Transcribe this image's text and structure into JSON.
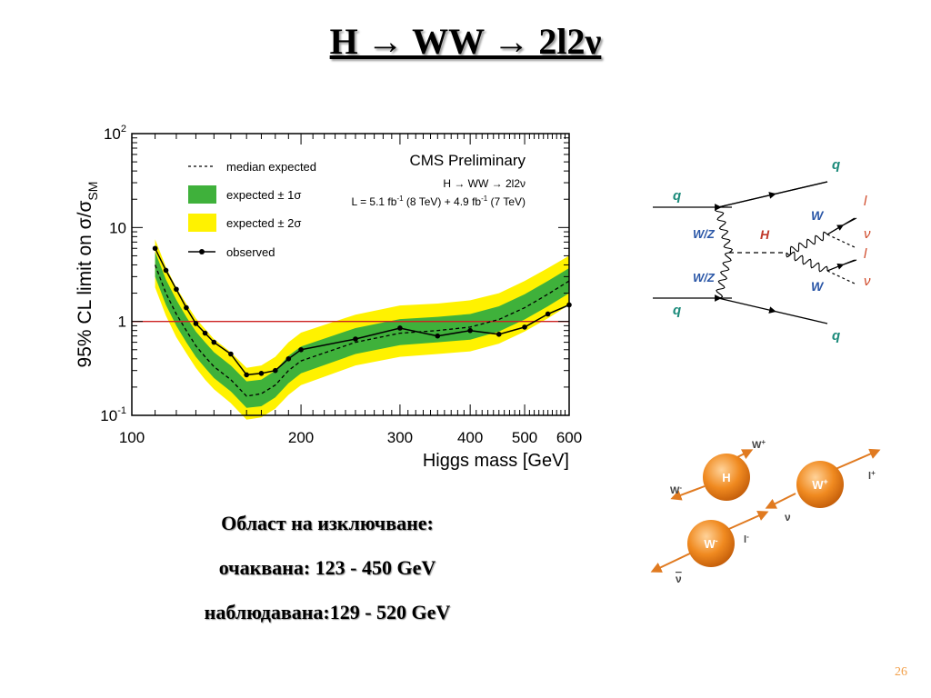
{
  "title": "H → WW → 2l2ν",
  "summary": {
    "heading": "Област на изключване:",
    "expected": "очаквана: 123 - 450 GeV",
    "observed": "наблюдавана:129 - 520 GeV"
  },
  "slide_number": "26",
  "chart_data": {
    "type": "line",
    "xlabel": "Higgs mass [GeV]",
    "ylabel": "95% CL limit on σ/σ",
    "ylabel_sub": "SM",
    "x_scale": "log",
    "y_scale": "log",
    "xlim": [
      100,
      600
    ],
    "ylim": [
      0.1,
      100
    ],
    "x_ticks": [
      100,
      200,
      300,
      400,
      500,
      600
    ],
    "y_ticks": [
      {
        "value": 100,
        "base": "10",
        "exp": "2"
      },
      {
        "value": 10,
        "base": "10",
        "exp": ""
      },
      {
        "value": 1,
        "base": "1",
        "exp": ""
      },
      {
        "value": 0.1,
        "base": "10",
        "exp": "-1"
      }
    ],
    "reference_line": 1,
    "legend_position": "top-left",
    "legend": [
      "median expected",
      "expected ± 1σ",
      "expected ± 2σ",
      "observed"
    ],
    "annotation": {
      "title": "CMS Preliminary",
      "process": "H → WW → 2l2ν",
      "lumi_prefix": "L = 5.1 fb",
      "lumi_mid": " (8 TeV) + 4.9 fb",
      "lumi_suffix": " (7 TeV)",
      "lumi_exp": "-1"
    },
    "colors": {
      "band_1sigma": "#3fb13b",
      "band_2sigma": "#fff200",
      "reference": "#cc2222",
      "observed": "#000000"
    },
    "series": [
      {
        "name": "observed",
        "x": [
          110,
          115,
          120,
          125,
          130,
          135,
          140,
          150,
          160,
          170,
          180,
          190,
          200,
          250,
          300,
          350,
          400,
          450,
          500,
          550,
          600
        ],
        "values": [
          6.0,
          3.5,
          2.2,
          1.4,
          0.95,
          0.75,
          0.6,
          0.45,
          0.27,
          0.28,
          0.3,
          0.4,
          0.5,
          0.65,
          0.85,
          0.7,
          0.8,
          0.73,
          0.87,
          1.2,
          1.5
        ]
      },
      {
        "name": "median expected",
        "x": [
          110,
          115,
          120,
          125,
          130,
          135,
          140,
          150,
          160,
          170,
          180,
          190,
          200,
          250,
          300,
          350,
          400,
          450,
          500,
          550,
          600
        ],
        "values": [
          4.0,
          2.0,
          1.2,
          0.8,
          0.55,
          0.42,
          0.33,
          0.24,
          0.16,
          0.17,
          0.21,
          0.3,
          0.38,
          0.6,
          0.75,
          0.8,
          0.87,
          1.05,
          1.4,
          1.95,
          2.7
        ]
      }
    ],
    "band_1sigma": {
      "x": [
        110,
        115,
        120,
        125,
        130,
        135,
        140,
        150,
        160,
        170,
        180,
        190,
        200,
        250,
        300,
        350,
        400,
        450,
        500,
        550,
        600
      ],
      "low": [
        3.0,
        1.5,
        0.9,
        0.6,
        0.42,
        0.32,
        0.25,
        0.18,
        0.12,
        0.125,
        0.155,
        0.22,
        0.28,
        0.45,
        0.56,
        0.6,
        0.64,
        0.78,
        1.05,
        1.45,
        2.0
      ],
      "high": [
        5.5,
        2.8,
        1.7,
        1.12,
        0.78,
        0.6,
        0.47,
        0.34,
        0.23,
        0.24,
        0.3,
        0.43,
        0.54,
        0.85,
        1.06,
        1.12,
        1.2,
        1.45,
        1.95,
        2.7,
        3.7
      ]
    },
    "band_2sigma": {
      "x": [
        110,
        115,
        120,
        125,
        130,
        135,
        140,
        150,
        160,
        170,
        180,
        190,
        200,
        250,
        300,
        350,
        400,
        450,
        500,
        550,
        600
      ],
      "low": [
        2.3,
        1.15,
        0.68,
        0.46,
        0.32,
        0.24,
        0.19,
        0.135,
        0.09,
        0.095,
        0.118,
        0.165,
        0.21,
        0.34,
        0.42,
        0.45,
        0.48,
        0.58,
        0.78,
        1.08,
        1.5
      ],
      "high": [
        7.5,
        3.8,
        2.3,
        1.55,
        1.08,
        0.83,
        0.65,
        0.47,
        0.32,
        0.34,
        0.42,
        0.6,
        0.76,
        1.18,
        1.48,
        1.55,
        1.68,
        2.0,
        2.7,
        3.7,
        5.0
      ]
    }
  },
  "feynman": {
    "q_in_top": "q",
    "q_out_top": "q",
    "q_in_bottom": "q",
    "q_out_bottom": "q",
    "wz_top": "W/Z",
    "wz_bottom": "W/Z",
    "higgs": "H",
    "w_top": "W",
    "w_bottom": "W",
    "lepton_top": "l",
    "nu_top": "ν",
    "lepton_bottom": "l",
    "nu_bottom": "ν",
    "colors": {
      "quark": "#1b8a7a",
      "boson": "#2b57a7",
      "lepton": "#d04a2a"
    }
  },
  "decay": {
    "higgs": "H",
    "w_minus": "W",
    "w_plus": "W",
    "w_plus_out": "W",
    "w_minus_out": "W",
    "l_plus": "l",
    "l_minus": "l",
    "nu": "ν",
    "nu_bar": "ν",
    "plus": "+",
    "minus": "-",
    "colors": {
      "ball": "#f08a20",
      "arrow": "#e07a20"
    }
  }
}
